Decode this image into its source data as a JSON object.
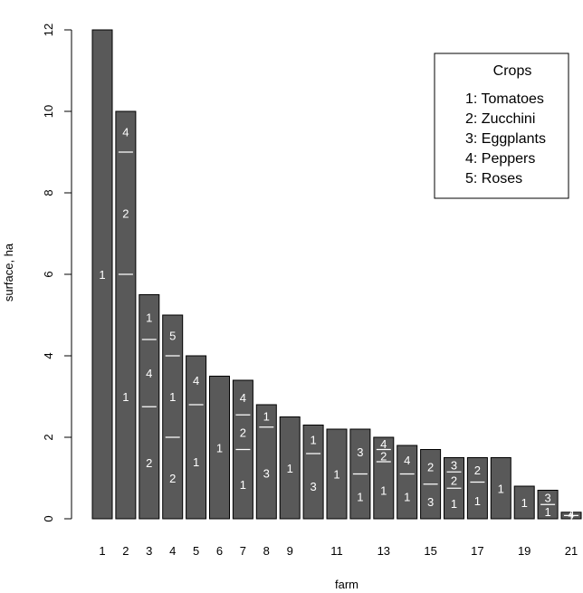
{
  "chart_data": {
    "type": "bar",
    "stacked": true,
    "xlabel": "farm",
    "ylabel": "surface, ha",
    "ylim": [
      0,
      12
    ],
    "yticks": [
      0,
      2,
      4,
      6,
      8,
      10,
      12
    ],
    "xtick_labels": [
      "1",
      "2",
      "3",
      "4",
      "5",
      "6",
      "7",
      "8",
      "9",
      "11",
      "13",
      "15",
      "17",
      "19",
      "21"
    ],
    "colors": {
      "bar": "#595959",
      "separator": "#ffffff",
      "axis": "#000000"
    },
    "legend": {
      "title": "Crops",
      "position": "top-right",
      "entries": [
        "1: Tomatoes",
        "2: Zucchini",
        "3: Eggplants",
        "4: Peppers",
        "5: Roses"
      ]
    },
    "farms": [
      {
        "farm": 1,
        "segments": [
          {
            "crop": "1",
            "value": 12
          }
        ]
      },
      {
        "farm": 2,
        "segments": [
          {
            "crop": "1",
            "value": 6
          },
          {
            "crop": "2",
            "value": 3
          },
          {
            "crop": "4",
            "value": 1
          }
        ]
      },
      {
        "farm": 3,
        "segments": [
          {
            "crop": "2",
            "value": 2.75
          },
          {
            "crop": "4",
            "value": 1.65
          },
          {
            "crop": "1",
            "value": 1.1
          }
        ]
      },
      {
        "farm": 4,
        "segments": [
          {
            "crop": "2",
            "value": 2
          },
          {
            "crop": "1",
            "value": 2
          },
          {
            "crop": "5",
            "value": 1
          }
        ]
      },
      {
        "farm": 5,
        "segments": [
          {
            "crop": "1",
            "value": 2.8
          },
          {
            "crop": "4",
            "value": 1.2
          }
        ]
      },
      {
        "farm": 6,
        "segments": [
          {
            "crop": "1",
            "value": 3.5
          }
        ]
      },
      {
        "farm": 7,
        "segments": [
          {
            "crop": "1",
            "value": 1.7
          },
          {
            "crop": "2",
            "value": 0.85
          },
          {
            "crop": "4",
            "value": 0.85
          }
        ]
      },
      {
        "farm": 8,
        "segments": [
          {
            "crop": "3",
            "value": 2.25
          },
          {
            "crop": "1",
            "value": 0.55
          }
        ]
      },
      {
        "farm": 9,
        "segments": [
          {
            "crop": "1",
            "value": 2.5
          }
        ]
      },
      {
        "farm": 10,
        "segments": [
          {
            "crop": "3",
            "value": 1.6
          },
          {
            "crop": "1",
            "value": 0.7
          }
        ]
      },
      {
        "farm": 11,
        "segments": [
          {
            "crop": "1",
            "value": 2.2
          }
        ]
      },
      {
        "farm": 12,
        "segments": [
          {
            "crop": "1",
            "value": 1.1
          },
          {
            "crop": "3",
            "value": 1.1
          }
        ]
      },
      {
        "farm": 13,
        "segments": [
          {
            "crop": "1",
            "value": 1.4
          },
          {
            "crop": "2",
            "value": 0.3
          },
          {
            "crop": "4",
            "value": 0.3
          }
        ]
      },
      {
        "farm": 14,
        "segments": [
          {
            "crop": "1",
            "value": 1.1
          },
          {
            "crop": "4",
            "value": 0.7
          }
        ]
      },
      {
        "farm": 15,
        "segments": [
          {
            "crop": "3",
            "value": 0.85
          },
          {
            "crop": "2",
            "value": 0.85
          }
        ]
      },
      {
        "farm": 16,
        "segments": [
          {
            "crop": "1",
            "value": 0.75
          },
          {
            "crop": "2",
            "value": 0.4
          },
          {
            "crop": "3",
            "value": 0.35
          }
        ]
      },
      {
        "farm": 17,
        "segments": [
          {
            "crop": "1",
            "value": 0.9
          },
          {
            "crop": "2",
            "value": 0.6
          }
        ]
      },
      {
        "farm": 18,
        "segments": [
          {
            "crop": "1",
            "value": 1.5
          }
        ]
      },
      {
        "farm": 19,
        "segments": [
          {
            "crop": "1",
            "value": 0.8
          }
        ]
      },
      {
        "farm": 20,
        "segments": [
          {
            "crop": "1",
            "value": 0.35
          },
          {
            "crop": "3",
            "value": 0.35
          }
        ]
      },
      {
        "farm": 21,
        "segments": [
          {
            "crop": "1",
            "value": 0.08
          },
          {
            "crop": "4",
            "value": 0.08
          }
        ]
      }
    ]
  }
}
